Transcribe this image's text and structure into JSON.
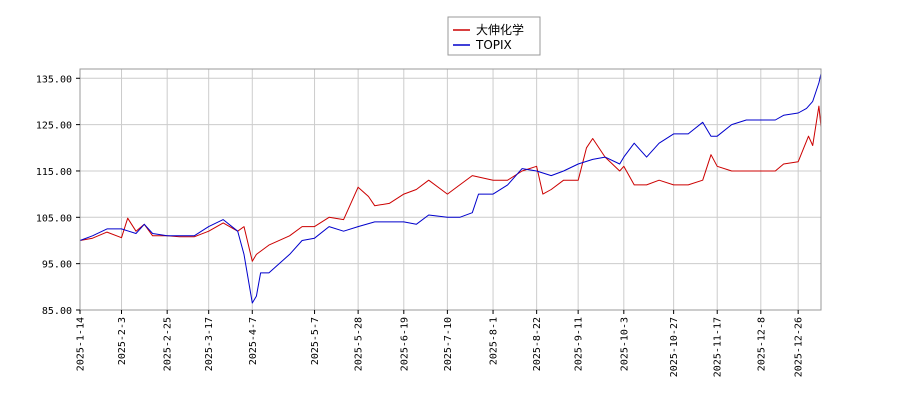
{
  "chart_data": {
    "type": "line",
    "title": "",
    "xlabel": "",
    "ylabel": "",
    "ylim": [
      85,
      137
    ],
    "y_ticks": [
      85,
      95,
      105,
      115,
      125,
      135
    ],
    "y_tick_labels": [
      "85.00",
      "95.00",
      "105.00",
      "115.00",
      "125.00",
      "135.00"
    ],
    "x_ticks": [
      "2025-1-14",
      "2025-2-3",
      "2025-2-25",
      "2025-3-17",
      "2025-4-7",
      "2025-5-7",
      "2025-5-28",
      "2025-6-19",
      "2025-7-10",
      "2025-8-1",
      "2025-8-22",
      "2025-9-11",
      "2025-10-3",
      "2025-10-27",
      "2025-11-17",
      "2025-12-8",
      "2025-12-26"
    ],
    "grid": true,
    "legend_position": "top-center",
    "series": [
      {
        "name": "大伸化学",
        "color": "#cc0000",
        "points": [
          [
            "2025-1-14",
            100.0
          ],
          [
            "2025-1-20",
            100.5
          ],
          [
            "2025-1-27",
            101.8
          ],
          [
            "2025-2-3",
            100.6
          ],
          [
            "2025-2-6",
            104.8
          ],
          [
            "2025-2-10",
            102.0
          ],
          [
            "2025-2-14",
            103.5
          ],
          [
            "2025-2-18",
            101.0
          ],
          [
            "2025-2-25",
            101.0
          ],
          [
            "2025-3-3",
            100.8
          ],
          [
            "2025-3-10",
            100.8
          ],
          [
            "2025-3-17",
            102.0
          ],
          [
            "2025-3-24",
            103.8
          ],
          [
            "2025-3-31",
            102.0
          ],
          [
            "2025-4-3",
            103.0
          ],
          [
            "2025-4-7",
            95.5
          ],
          [
            "2025-4-9",
            97.0
          ],
          [
            "2025-4-15",
            99.0
          ],
          [
            "2025-4-25",
            101.0
          ],
          [
            "2025-5-1",
            103.0
          ],
          [
            "2025-5-7",
            103.0
          ],
          [
            "2025-5-14",
            105.0
          ],
          [
            "2025-5-21",
            104.5
          ],
          [
            "2025-5-28",
            111.5
          ],
          [
            "2025-6-2",
            109.5
          ],
          [
            "2025-6-5",
            107.5
          ],
          [
            "2025-6-12",
            108.0
          ],
          [
            "2025-6-19",
            110.0
          ],
          [
            "2025-6-25",
            111.0
          ],
          [
            "2025-7-1",
            113.0
          ],
          [
            "2025-7-7",
            111.0
          ],
          [
            "2025-7-10",
            110.0
          ],
          [
            "2025-7-16",
            112.0
          ],
          [
            "2025-7-22",
            114.0
          ],
          [
            "2025-8-1",
            113.0
          ],
          [
            "2025-8-8",
            113.0
          ],
          [
            "2025-8-15",
            115.0
          ],
          [
            "2025-8-22",
            116.0
          ],
          [
            "2025-8-25",
            110.0
          ],
          [
            "2025-8-29",
            111.0
          ],
          [
            "2025-9-4",
            113.0
          ],
          [
            "2025-9-11",
            113.0
          ],
          [
            "2025-9-15",
            120.0
          ],
          [
            "2025-9-18",
            122.0
          ],
          [
            "2025-9-24",
            118.0
          ],
          [
            "2025-10-1",
            115.0
          ],
          [
            "2025-10-3",
            116.0
          ],
          [
            "2025-10-8",
            112.0
          ],
          [
            "2025-10-14",
            112.0
          ],
          [
            "2025-10-20",
            113.0
          ],
          [
            "2025-10-27",
            112.0
          ],
          [
            "2025-11-3",
            112.0
          ],
          [
            "2025-11-10",
            113.0
          ],
          [
            "2025-11-14",
            118.5
          ],
          [
            "2025-11-17",
            116.0
          ],
          [
            "2025-11-24",
            115.0
          ],
          [
            "2025-12-1",
            115.0
          ],
          [
            "2025-12-8",
            115.0
          ],
          [
            "2025-12-15",
            115.0
          ],
          [
            "2025-12-19",
            116.5
          ],
          [
            "2025-12-26",
            117.0
          ],
          [
            "2025-12-31",
            122.5
          ],
          [
            "2026-1-2",
            120.5
          ],
          [
            "2026-1-5",
            129.0
          ],
          [
            "2026-1-6",
            124.5
          ]
        ]
      },
      {
        "name": "TOPIX",
        "color": "#0000cc",
        "points": [
          [
            "2025-1-14",
            100.0
          ],
          [
            "2025-1-20",
            101.0
          ],
          [
            "2025-1-27",
            102.5
          ],
          [
            "2025-2-3",
            102.5
          ],
          [
            "2025-2-10",
            101.5
          ],
          [
            "2025-2-14",
            103.5
          ],
          [
            "2025-2-18",
            101.5
          ],
          [
            "2025-2-25",
            101.0
          ],
          [
            "2025-3-3",
            101.0
          ],
          [
            "2025-3-10",
            101.0
          ],
          [
            "2025-3-17",
            103.0
          ],
          [
            "2025-3-24",
            104.5
          ],
          [
            "2025-3-31",
            102.0
          ],
          [
            "2025-4-3",
            97.0
          ],
          [
            "2025-4-7",
            86.5
          ],
          [
            "2025-4-9",
            88.0
          ],
          [
            "2025-4-11",
            93.0
          ],
          [
            "2025-4-15",
            93.0
          ],
          [
            "2025-4-25",
            97.0
          ],
          [
            "2025-5-1",
            100.0
          ],
          [
            "2025-5-7",
            100.5
          ],
          [
            "2025-5-14",
            103.0
          ],
          [
            "2025-5-21",
            102.0
          ],
          [
            "2025-5-28",
            103.0
          ],
          [
            "2025-6-5",
            104.0
          ],
          [
            "2025-6-12",
            104.0
          ],
          [
            "2025-6-19",
            104.0
          ],
          [
            "2025-6-25",
            103.5
          ],
          [
            "2025-7-1",
            105.5
          ],
          [
            "2025-7-10",
            105.0
          ],
          [
            "2025-7-16",
            105.0
          ],
          [
            "2025-7-22",
            106.0
          ],
          [
            "2025-7-25",
            110.0
          ],
          [
            "2025-8-1",
            110.0
          ],
          [
            "2025-8-8",
            112.0
          ],
          [
            "2025-8-15",
            115.5
          ],
          [
            "2025-8-22",
            115.0
          ],
          [
            "2025-8-29",
            114.0
          ],
          [
            "2025-9-4",
            115.0
          ],
          [
            "2025-9-11",
            116.5
          ],
          [
            "2025-9-18",
            117.5
          ],
          [
            "2025-9-24",
            118.0
          ],
          [
            "2025-10-1",
            116.5
          ],
          [
            "2025-10-3",
            118.0
          ],
          [
            "2025-10-8",
            121.0
          ],
          [
            "2025-10-14",
            118.0
          ],
          [
            "2025-10-20",
            121.0
          ],
          [
            "2025-10-27",
            123.0
          ],
          [
            "2025-11-3",
            123.0
          ],
          [
            "2025-11-10",
            125.5
          ],
          [
            "2025-11-14",
            122.5
          ],
          [
            "2025-11-17",
            122.5
          ],
          [
            "2025-11-24",
            125.0
          ],
          [
            "2025-12-1",
            126.0
          ],
          [
            "2025-12-8",
            126.0
          ],
          [
            "2025-12-15",
            126.0
          ],
          [
            "2025-12-19",
            127.0
          ],
          [
            "2025-12-26",
            127.5
          ],
          [
            "2025-12-30",
            128.5
          ],
          [
            "2026-1-2",
            130.0
          ],
          [
            "2026-1-5",
            134.0
          ],
          [
            "2026-1-6",
            136.0
          ]
        ]
      }
    ]
  }
}
